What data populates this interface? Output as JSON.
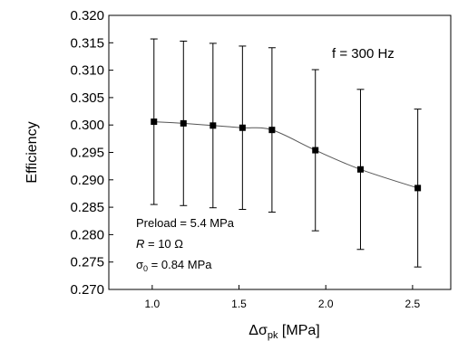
{
  "chart_data": {
    "type": "line",
    "xlabel_prefix": "Δσ",
    "xlabel_sub": "pk",
    "xlabel_suffix": " [MPa]",
    "ylabel": "Efficiency",
    "xlim": [
      0.75,
      2.72
    ],
    "ylim": [
      0.27,
      0.32
    ],
    "x_ticks": [
      1.0,
      1.5,
      2.0,
      2.5
    ],
    "x_tick_labels": [
      "1.0",
      "1.5",
      "2.0",
      "2.5"
    ],
    "y_ticks": [
      0.27,
      0.275,
      0.28,
      0.285,
      0.29,
      0.295,
      0.3,
      0.305,
      0.31,
      0.315,
      0.32
    ],
    "y_tick_labels": [
      "0.270",
      "0.275",
      "0.280",
      "0.285",
      "0.290",
      "0.295",
      "0.300",
      "0.305",
      "0.310",
      "0.315",
      "0.320"
    ],
    "grid": false,
    "series": [
      {
        "x": [
          1.01,
          1.18,
          1.35,
          1.52,
          1.69,
          1.94,
          2.2,
          2.53
        ],
        "y": [
          0.3006,
          0.3003,
          0.2999,
          0.2995,
          0.2991,
          0.2954,
          0.2919,
          0.2885
        ],
        "err": [
          0.0151,
          0.015,
          0.015,
          0.0149,
          0.015,
          0.0147,
          0.0146,
          0.0144
        ],
        "marker": "square",
        "color": "#000000",
        "line_color": "#555555"
      }
    ],
    "annotations": {
      "frequency": "f = 300 Hz",
      "preload": "Preload = 5.4 MPa",
      "resistance_symbol": "R",
      "resistance_value": " = 10 Ω",
      "sigma_symbol": "σ",
      "sigma_sub": "0",
      "sigma_value": " = 0.84 MPa"
    }
  }
}
